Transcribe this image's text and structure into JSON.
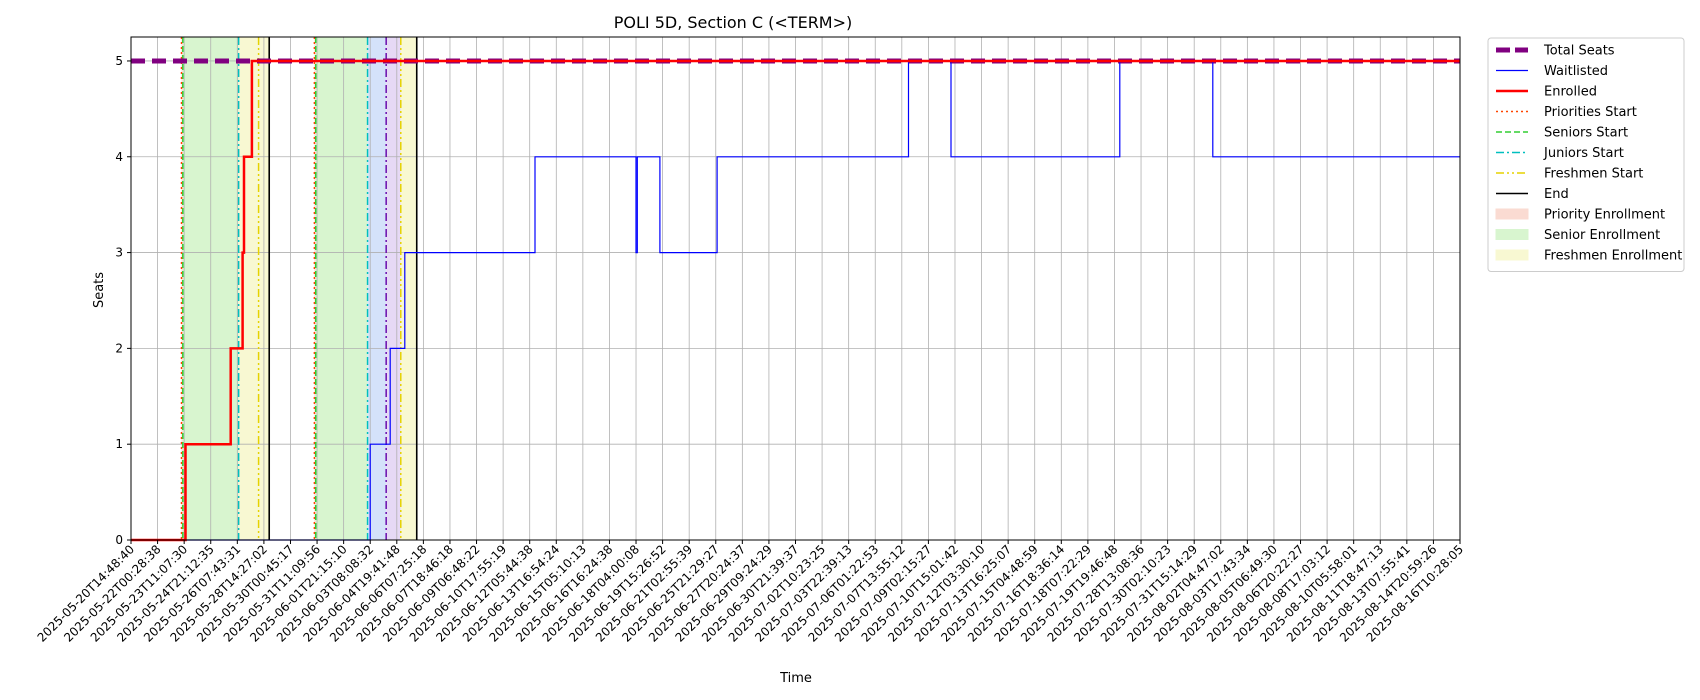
{
  "chart_data": {
    "type": "line",
    "title": "POLI 5D, Section C (<TERM>)",
    "xlabel": "Time",
    "ylabel": "Seats",
    "ylim": [
      0,
      5.25
    ],
    "yticks": [
      0,
      1,
      2,
      3,
      4,
      5
    ],
    "grid": true,
    "legend_position": "outside-top-right",
    "x_tick_labels": [
      "2025-05-20T14:48:40",
      "2025-05-22T00:28:38",
      "2025-05-23T11:07:30",
      "2025-05-24T21:12:35",
      "2025-05-26T07:43:31",
      "2025-05-28T14:27:02",
      "2025-05-30T00:45:17",
      "2025-05-31T11:09:56",
      "2025-06-01T21:15:10",
      "2025-06-03T08:08:32",
      "2025-06-04T19:41:48",
      "2025-06-06T07:25:18",
      "2025-06-07T18:46:18",
      "2025-06-09T06:48:22",
      "2025-06-10T17:55:19",
      "2025-06-12T05:44:38",
      "2025-06-13T16:54:24",
      "2025-06-15T05:10:13",
      "2025-06-16T16:24:38",
      "2025-06-18T04:00:08",
      "2025-06-19T15:26:52",
      "2025-06-21T02:55:39",
      "2025-06-25T21:29:27",
      "2025-06-27T20:24:37",
      "2025-06-29T09:24:29",
      "2025-06-30T21:39:37",
      "2025-07-02T10:23:25",
      "2025-07-03T22:39:13",
      "2025-07-06T01:22:53",
      "2025-07-07T13:55:12",
      "2025-07-09T02:15:27",
      "2025-07-10T15:01:42",
      "2025-07-12T03:30:10",
      "2025-07-13T16:25:07",
      "2025-07-15T04:48:59",
      "2025-07-16T18:36:14",
      "2025-07-18T07:22:29",
      "2025-07-19T19:46:48",
      "2025-07-28T13:08:36",
      "2025-07-30T02:10:23",
      "2025-07-31T15:14:29",
      "2025-08-02T04:47:02",
      "2025-08-03T17:43:34",
      "2025-08-05T06:49:30",
      "2025-08-06T20:22:27",
      "2025-08-08T17:03:12",
      "2025-08-10T05:58:01",
      "2025-08-11T18:47:13",
      "2025-08-13T07:55:41",
      "2025-08-14T20:59:26",
      "2025-08-16T10:28:05"
    ],
    "x_range_ticks": [
      0,
      50
    ],
    "series": [
      {
        "name": "Total Seats",
        "color": "#800080",
        "style": "dashed-thick",
        "points": [
          [
            0,
            5
          ],
          [
            50,
            5
          ]
        ]
      },
      {
        "name": "Waitlisted",
        "color": "#0000ff",
        "style": "step-thin",
        "points": [
          [
            0,
            0
          ],
          [
            8.85,
            0
          ],
          [
            8.85,
            0
          ],
          [
            9.0,
            0
          ],
          [
            9.0,
            1
          ],
          [
            9.75,
            1
          ],
          [
            9.75,
            2
          ],
          [
            10.3,
            2
          ],
          [
            10.3,
            3
          ],
          [
            15.2,
            3
          ],
          [
            15.2,
            4
          ],
          [
            19.0,
            4
          ],
          [
            19.0,
            3
          ],
          [
            19.05,
            3
          ],
          [
            19.05,
            4
          ],
          [
            19.9,
            4
          ],
          [
            19.9,
            3
          ],
          [
            22.05,
            3
          ],
          [
            22.05,
            4
          ],
          [
            29.25,
            4
          ],
          [
            29.25,
            5
          ],
          [
            30.85,
            5
          ],
          [
            30.85,
            4
          ],
          [
            37.2,
            4
          ],
          [
            37.2,
            5
          ],
          [
            40.7,
            5
          ],
          [
            40.7,
            4
          ],
          [
            50,
            4
          ]
        ]
      },
      {
        "name": "Enrolled",
        "color": "#ff0000",
        "style": "step-thick",
        "points": [
          [
            0,
            0
          ],
          [
            2.05,
            0
          ],
          [
            2.05,
            1
          ],
          [
            3.75,
            1
          ],
          [
            3.75,
            2
          ],
          [
            4.2,
            2
          ],
          [
            4.2,
            3
          ],
          [
            4.25,
            3
          ],
          [
            4.25,
            4
          ],
          [
            4.55,
            4
          ],
          [
            4.55,
            5
          ],
          [
            50,
            5
          ]
        ]
      }
    ],
    "vertical_lines": [
      {
        "name": "Priorities Start",
        "color": "#ff4500",
        "style": "dotted",
        "x": [
          1.9,
          6.9
        ]
      },
      {
        "name": "Seniors Start",
        "color": "#32cd32",
        "style": "dashed",
        "x": [
          1.95,
          6.95
        ]
      },
      {
        "name": "Juniors Start",
        "color": "#00bfbf",
        "style": "dashdot",
        "x": [
          4.05,
          8.9
        ]
      },
      {
        "name": "Freshmen Start",
        "color": "#e6d200",
        "style": "dashdotdot",
        "x": [
          4.8,
          10.15
        ]
      },
      {
        "name": "End",
        "color": "#000000",
        "style": "solid",
        "x": [
          5.2,
          10.75
        ]
      },
      {
        "name": "",
        "color": "#6a0dad",
        "style": "dashdot",
        "x": [
          9.6
        ]
      }
    ],
    "spans": [
      {
        "name": "Priority Enrollment",
        "color": "#fadbd2",
        "ranges": [
          [
            1.9,
            1.95
          ],
          [
            6.9,
            6.95
          ]
        ]
      },
      {
        "name": "Senior Enrollment",
        "color": "#d8f5cf",
        "ranges": [
          [
            1.95,
            4.05
          ],
          [
            6.95,
            8.9
          ]
        ]
      },
      {
        "name": "",
        "color": "#d4e2fa",
        "ranges": [
          [
            8.9,
            9.6
          ]
        ]
      },
      {
        "name": "",
        "color": "#e6d9f5",
        "ranges": [
          [
            9.6,
            10.15
          ]
        ]
      },
      {
        "name": "Freshmen Enrollment",
        "color": "#f8f8d2",
        "ranges": [
          [
            4.05,
            5.2
          ],
          [
            10.15,
            10.75
          ]
        ]
      }
    ],
    "legend": [
      {
        "label": "Total Seats",
        "color": "#800080",
        "kind": "dashed-thick"
      },
      {
        "label": "Waitlisted",
        "color": "#0000ff",
        "kind": "line-thin"
      },
      {
        "label": "Enrolled",
        "color": "#ff0000",
        "kind": "line-thick"
      },
      {
        "label": "Priorities Start",
        "color": "#ff4500",
        "kind": "dotted"
      },
      {
        "label": "Seniors Start",
        "color": "#32cd32",
        "kind": "dashed"
      },
      {
        "label": "Juniors Start",
        "color": "#00bfbf",
        "kind": "dashdot"
      },
      {
        "label": "Freshmen Start",
        "color": "#e6d200",
        "kind": "dashdotdot"
      },
      {
        "label": "End",
        "color": "#000000",
        "kind": "solid"
      },
      {
        "label": "Priority Enrollment",
        "color": "#fadbd2",
        "kind": "patch"
      },
      {
        "label": "Senior Enrollment",
        "color": "#d8f5cf",
        "kind": "patch"
      },
      {
        "label": "Freshmen Enrollment",
        "color": "#f8f8d2",
        "kind": "patch"
      }
    ]
  }
}
